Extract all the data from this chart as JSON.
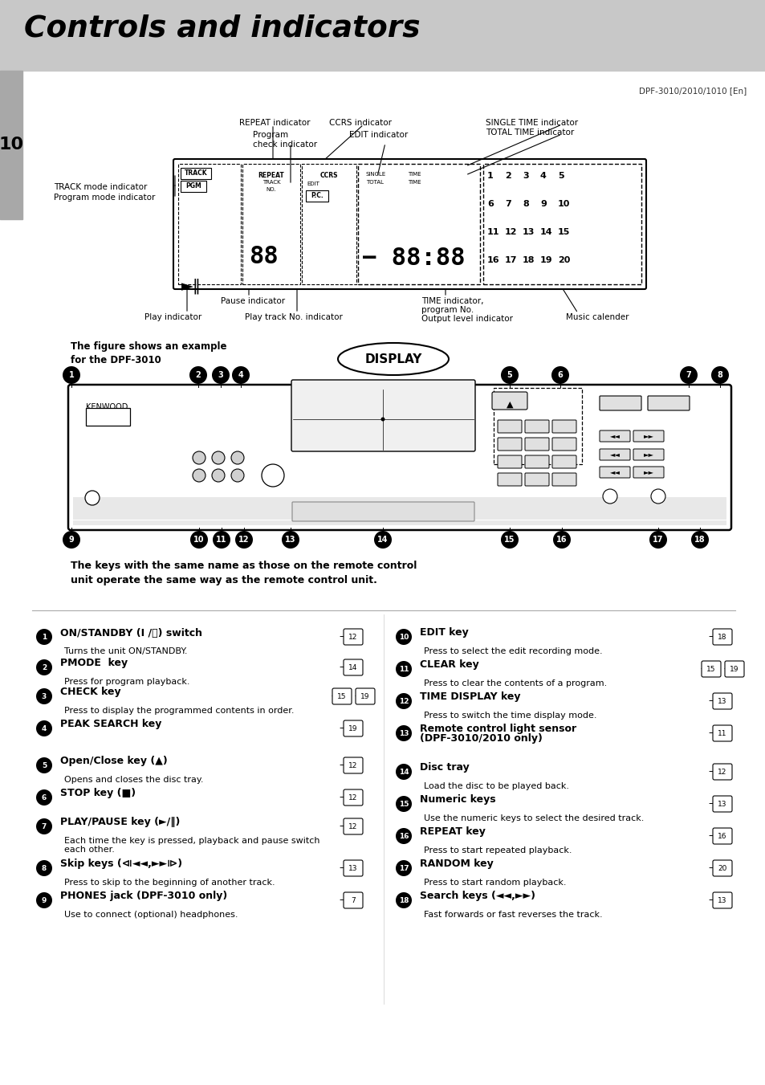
{
  "title": "Controls and indicators",
  "page_number": "10",
  "model_text": "DPF-3010/2010/1010 [En]",
  "bg_color": "#ffffff",
  "header_bg": "#c8c8c8",
  "sidebar_bg": "#a8a8a8",
  "notice_text": "The keys with the same name as those on the remote control\nunit operate the same way as the remote control unit.",
  "display_note": "The figure shows an example\nfor the DPF-3010",
  "display_label": "DISPLAY",
  "cal_nums": [
    [
      "1",
      "2",
      "3",
      "4",
      "5"
    ],
    [
      "6",
      "7",
      "8",
      "9",
      "10"
    ],
    [
      "11",
      "12",
      "13",
      "14",
      "15"
    ],
    [
      "16",
      "17",
      "18",
      "19",
      "20"
    ]
  ],
  "left_items": [
    {
      "num": "1",
      "bold": "ON/STANDBY (I /⏻) switch",
      "sub": "Turns the unit ON/STANDBY.",
      "ref": "12",
      "refs": null
    },
    {
      "num": "2",
      "bold": "PMODE  key",
      "sub": "Press for program playback.",
      "ref": "14",
      "refs": null
    },
    {
      "num": "3",
      "bold": "CHECK key",
      "sub": "Press to display the programmed contents in order.",
      "ref": null,
      "refs": [
        "15",
        "19"
      ]
    },
    {
      "num": "4",
      "bold": "PEAK SEARCH key",
      "sub": "",
      "ref": "19",
      "refs": null
    },
    {
      "num": "5",
      "bold": "Open/Close key (▲)",
      "sub": "Opens and closes the disc tray.",
      "ref": "12",
      "refs": null
    },
    {
      "num": "6",
      "bold": "STOP key (■)",
      "sub": "",
      "ref": "12",
      "refs": null
    },
    {
      "num": "7",
      "bold": "PLAY/PAUSE key (►/‖)",
      "sub": "Each time the key is pressed, playback and pause switch\neach other.",
      "ref": "12",
      "refs": null
    },
    {
      "num": "8",
      "bold": "Skip keys (⧏◄◄,►►⧐)",
      "sub": "Press to skip to the beginning of another track.",
      "ref": "13",
      "refs": null
    },
    {
      "num": "9",
      "bold": "PHONES jack (DPF-3010 only)",
      "sub": "Use to connect (optional) headphones.",
      "ref": "7",
      "refs": null
    }
  ],
  "right_items": [
    {
      "num": "10",
      "bold": "EDIT key",
      "sub": "Press to select the edit recording mode.",
      "ref": "18",
      "refs": null
    },
    {
      "num": "11",
      "bold": "CLEAR key",
      "sub": "Press to clear the contents of a program.",
      "ref": null,
      "refs": [
        "15",
        "19"
      ]
    },
    {
      "num": "12",
      "bold": "TIME DISPLAY key",
      "sub": "Press to switch the time display mode.",
      "ref": "13",
      "refs": null
    },
    {
      "num": "13",
      "bold": "Remote control light sensor\n(DPF-3010/2010 only)",
      "sub": "",
      "ref": "11",
      "refs": null
    },
    {
      "num": "14",
      "bold": "Disc tray",
      "sub": "Load the disc to be played back.",
      "ref": "12",
      "refs": null
    },
    {
      "num": "15",
      "bold": "Numeric keys",
      "sub": "Use the numeric keys to select the desired track.",
      "ref": "13",
      "refs": null
    },
    {
      "num": "16",
      "bold": "REPEAT key",
      "sub": "Press to start repeated playback.",
      "ref": "16",
      "refs": null
    },
    {
      "num": "17",
      "bold": "RANDOM key",
      "sub": "Press to start random playback.",
      "ref": "20",
      "refs": null
    },
    {
      "num": "18",
      "bold": "Search keys (◄◄,►►)",
      "sub": "Fast forwards or fast reverses the track.",
      "ref": "13",
      "refs": null
    }
  ]
}
